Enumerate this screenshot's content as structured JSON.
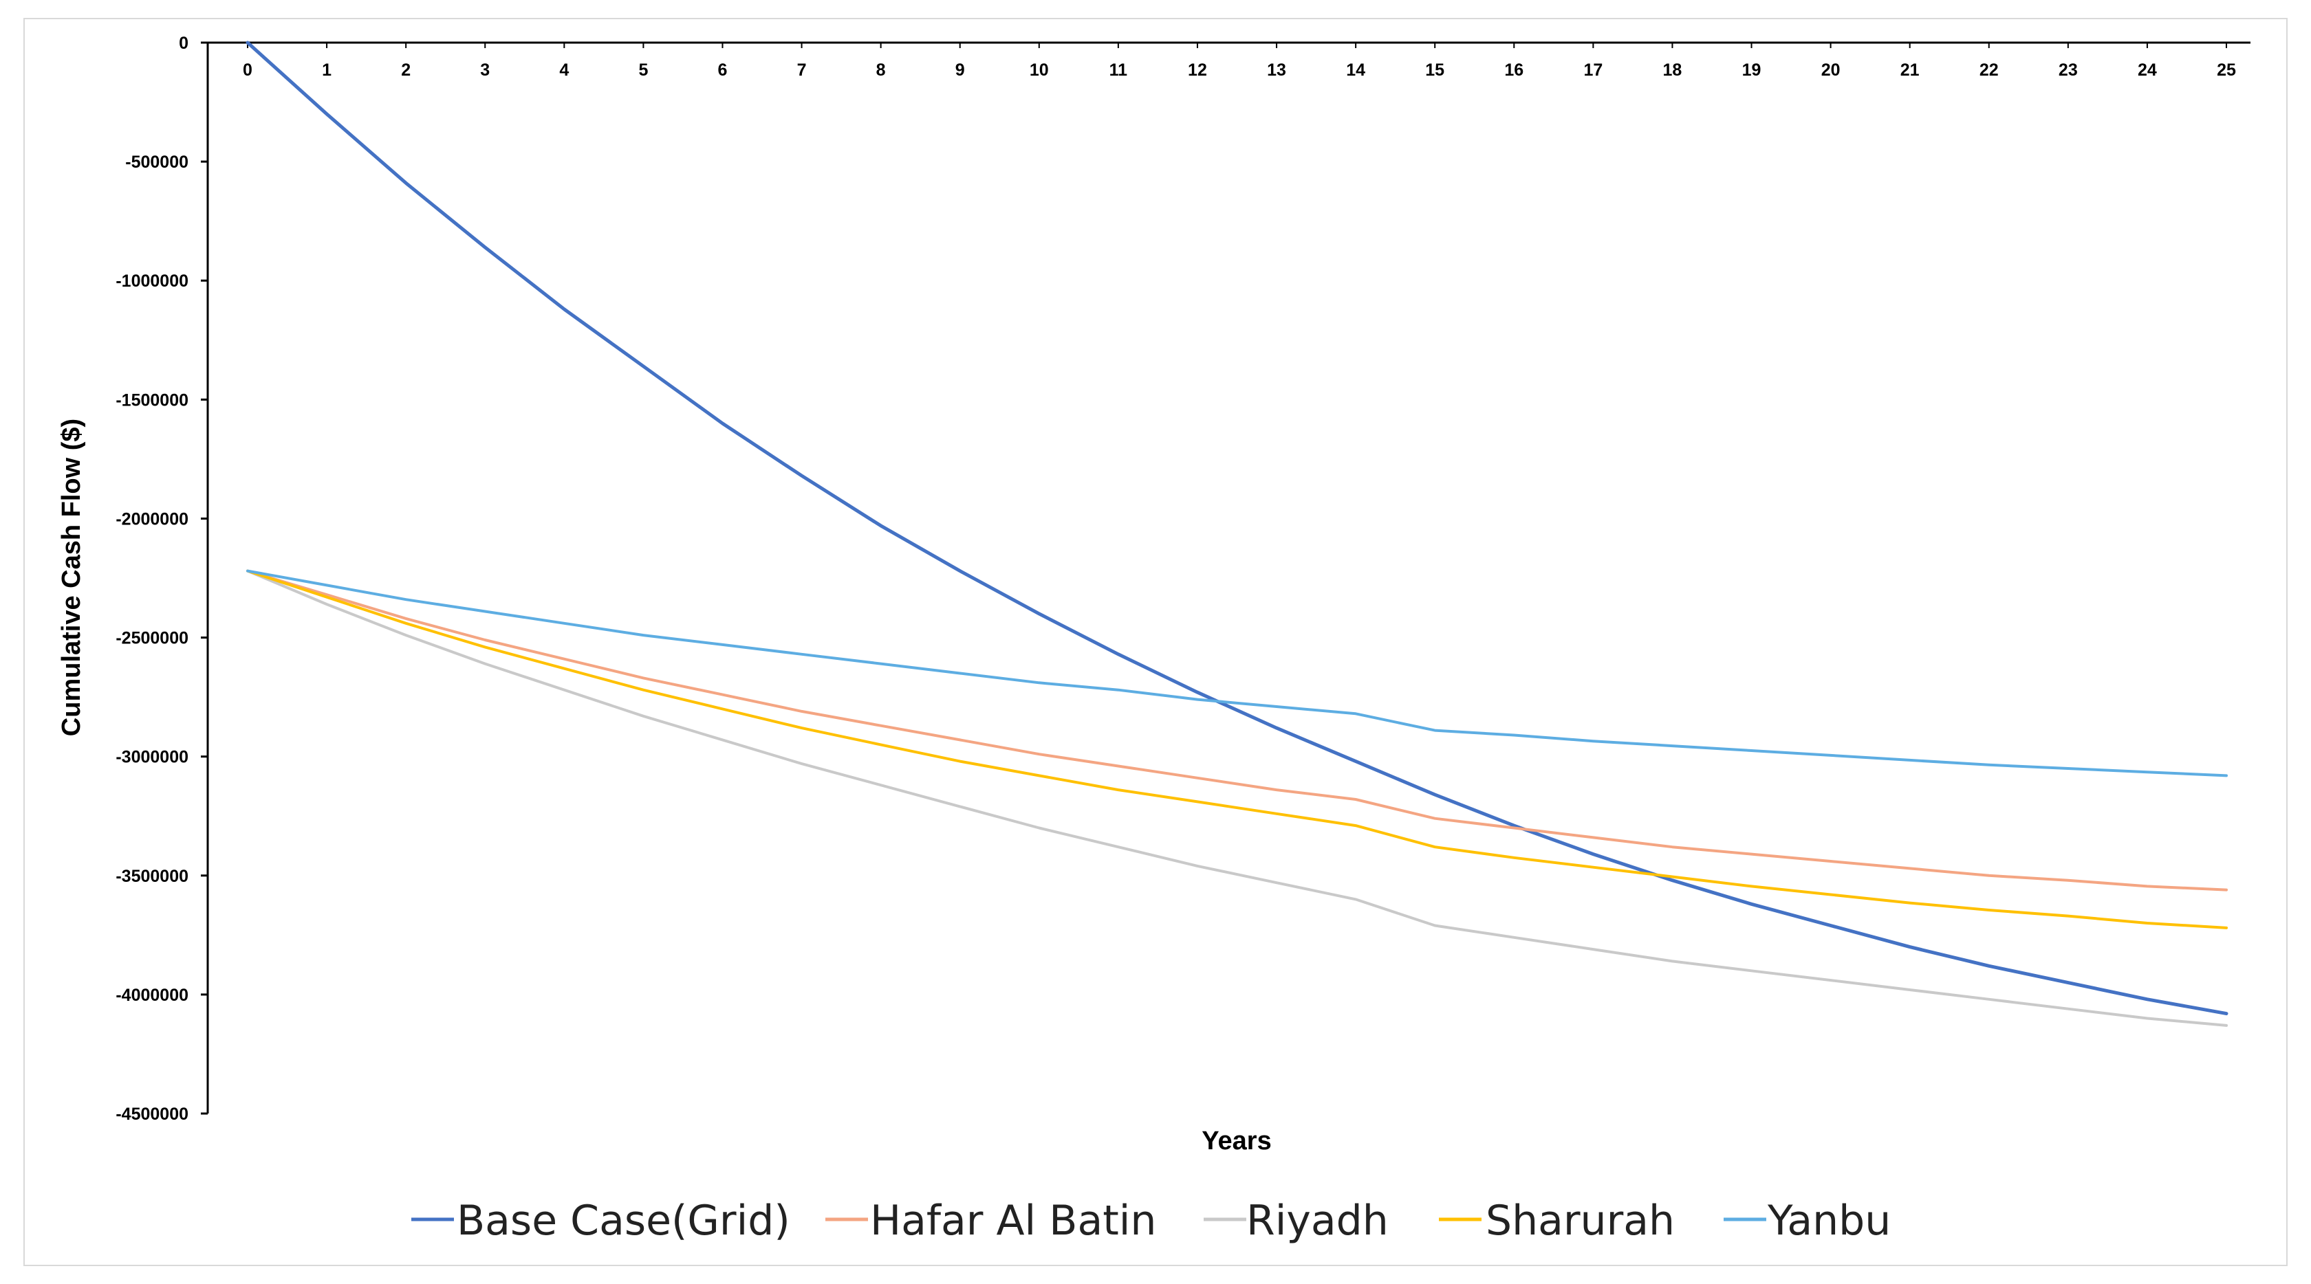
{
  "chart_data": {
    "type": "line",
    "title": "",
    "xlabel": "Years",
    "ylabel": "Cumulative Cash Flow ($)",
    "x": [
      0,
      1,
      2,
      3,
      4,
      5,
      6,
      7,
      8,
      9,
      10,
      11,
      12,
      13,
      14,
      15,
      16,
      17,
      18,
      19,
      20,
      21,
      22,
      23,
      24,
      25
    ],
    "xlim": [
      0,
      25
    ],
    "ylim": [
      -4500000,
      0
    ],
    "yticks": [
      0,
      -500000,
      -1000000,
      -1500000,
      -2000000,
      -2500000,
      -3000000,
      -3500000,
      -4000000,
      -4500000
    ],
    "ytick_labels": [
      "0",
      "-500000",
      "-1000000",
      "-1500000",
      "-2000000",
      "-2500000",
      "-3000000",
      "-3500000",
      "-4000000",
      "-4500000"
    ],
    "grid": false,
    "legend_position": "bottom",
    "series": [
      {
        "name": "Base Case(Grid)",
        "color": "#4472C4",
        "values": [
          0,
          -300000,
          -590000,
          -860000,
          -1120000,
          -1360000,
          -1600000,
          -1820000,
          -2030000,
          -2220000,
          -2400000,
          -2570000,
          -2730000,
          -2880000,
          -3020000,
          -3160000,
          -3290000,
          -3410000,
          -3520000,
          -3620000,
          -3710000,
          -3800000,
          -3880000,
          -3950000,
          -4020000,
          -4080000
        ]
      },
      {
        "name": "Hafar Al Batin",
        "color": "#F4A582",
        "values": [
          -2220000,
          -2320000,
          -2420000,
          -2510000,
          -2590000,
          -2670000,
          -2740000,
          -2810000,
          -2870000,
          -2930000,
          -2990000,
          -3040000,
          -3090000,
          -3140000,
          -3180000,
          -3260000,
          -3300000,
          -3340000,
          -3380000,
          -3410000,
          -3440000,
          -3470000,
          -3500000,
          -3520000,
          -3545000,
          -3560000
        ]
      },
      {
        "name": "Riyadh",
        "color": "#C9C9C9",
        "values": [
          -2220000,
          -2360000,
          -2490000,
          -2610000,
          -2720000,
          -2830000,
          -2930000,
          -3030000,
          -3120000,
          -3210000,
          -3300000,
          -3380000,
          -3460000,
          -3530000,
          -3600000,
          -3710000,
          -3760000,
          -3810000,
          -3860000,
          -3900000,
          -3940000,
          -3980000,
          -4020000,
          -4060000,
          -4100000,
          -4130000
        ]
      },
      {
        "name": "Sharurah",
        "color": "#FFC000",
        "values": [
          -2220000,
          -2330000,
          -2440000,
          -2540000,
          -2630000,
          -2720000,
          -2800000,
          -2880000,
          -2950000,
          -3020000,
          -3080000,
          -3140000,
          -3190000,
          -3240000,
          -3290000,
          -3380000,
          -3425000,
          -3465000,
          -3505000,
          -3545000,
          -3580000,
          -3615000,
          -3645000,
          -3670000,
          -3700000,
          -3720000
        ]
      },
      {
        "name": "Yanbu",
        "color": "#5DADE2",
        "values": [
          -2220000,
          -2280000,
          -2340000,
          -2390000,
          -2440000,
          -2490000,
          -2530000,
          -2570000,
          -2610000,
          -2650000,
          -2690000,
          -2720000,
          -2760000,
          -2790000,
          -2820000,
          -2890000,
          -2910000,
          -2935000,
          -2955000,
          -2975000,
          -2995000,
          -3015000,
          -3035000,
          -3050000,
          -3065000,
          -3080000
        ]
      }
    ]
  }
}
